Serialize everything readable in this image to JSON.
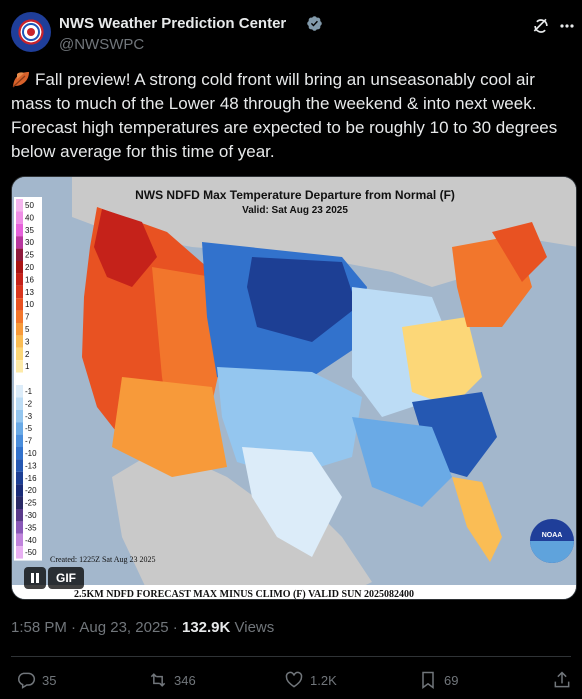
{
  "account": {
    "name": "NWS Weather Prediction Center",
    "handle": "@NWSWPC",
    "verified_icon": "verified-badge-icon",
    "avatar_icon": "nws-logo-icon"
  },
  "tweet": {
    "emoji_icon": "fallen-leaf-icon",
    "text": "Fall preview! A strong cold front will bring an unseasonably cool air mass to much of the Lower 48 through the weekend & into next week. Forecast high temperatures are expected to be roughly 10 to 30 degrees below average for this time of year."
  },
  "media": {
    "map_title": "NWS NDFD Max Temperature Departure from Normal (F)",
    "map_valid": "Valid: Sat Aug 23 2025",
    "created": "Created: 1225Z Sat Aug 23 2025",
    "footer": "2.5KM NDFD FORECAST MAX MINUS CLIMO (F) VALID SUN 2025082400",
    "noaa_logo_text": "NOAA",
    "gif_label": "GIF",
    "legend": [
      {
        "label": "50",
        "color": "#f4b5ee"
      },
      {
        "label": "40",
        "color": "#ee8ee6"
      },
      {
        "label": "35",
        "color": "#e662db"
      },
      {
        "label": "30",
        "color": "#b8369e"
      },
      {
        "label": "25",
        "color": "#8f1a3c"
      },
      {
        "label": "20",
        "color": "#a91414"
      },
      {
        "label": "16",
        "color": "#c5221a"
      },
      {
        "label": "13",
        "color": "#d9361e"
      },
      {
        "label": "10",
        "color": "#e85222"
      },
      {
        "label": "7",
        "color": "#f2762c"
      },
      {
        "label": "5",
        "color": "#f79a3a"
      },
      {
        "label": "3",
        "color": "#fabd55"
      },
      {
        "label": "2",
        "color": "#fcd778"
      },
      {
        "label": "1",
        "color": "#fdeaa8"
      },
      {
        "label": "",
        "color": "#ffffff"
      },
      {
        "label": "-1",
        "color": "#dcecf9"
      },
      {
        "label": "-2",
        "color": "#bcdcf5"
      },
      {
        "label": "-3",
        "color": "#94c6ef"
      },
      {
        "label": "-5",
        "color": "#6aaae6"
      },
      {
        "label": "-7",
        "color": "#4a8edc"
      },
      {
        "label": "-10",
        "color": "#3272cc"
      },
      {
        "label": "-13",
        "color": "#2558b2"
      },
      {
        "label": "-16",
        "color": "#1d3f94"
      },
      {
        "label": "-20",
        "color": "#1a2c78"
      },
      {
        "label": "-25",
        "color": "#2a2a66"
      },
      {
        "label": "-30",
        "color": "#5a3a8a"
      },
      {
        "label": "-35",
        "color": "#8a58b8"
      },
      {
        "label": "-40",
        "color": "#c083dc"
      },
      {
        "label": "-50",
        "color": "#e8b0f2"
      }
    ]
  },
  "meta": {
    "time": "1:58 PM",
    "sep1": " · ",
    "date": "Aug 23, 2025",
    "sep2": " · ",
    "views_count": "132.9K",
    "views_label": " Views"
  },
  "actions": {
    "reply_count": "35",
    "repost_count": "346",
    "like_count": "1.2K",
    "bookmark_count": "69"
  }
}
